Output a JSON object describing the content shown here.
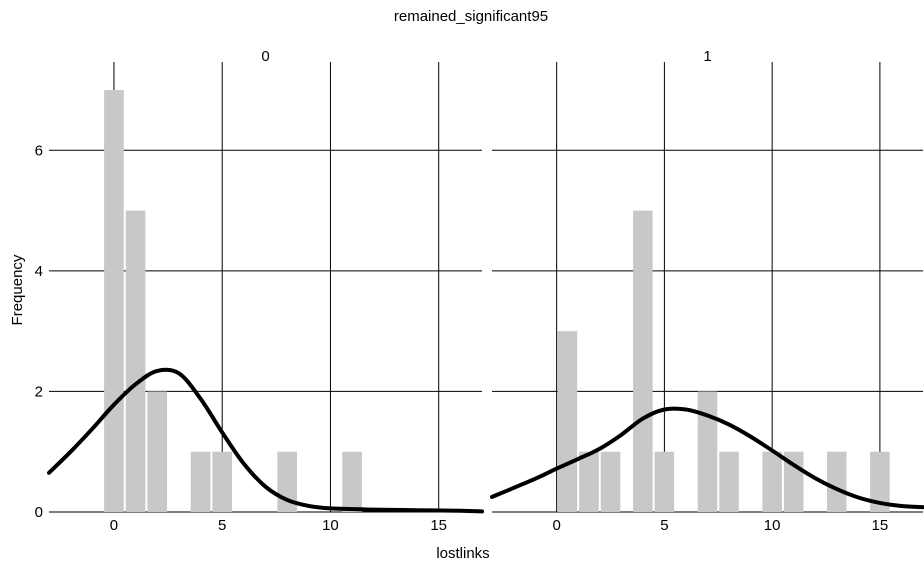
{
  "chart_data": {
    "type": "bar",
    "title": "remained_significant95",
    "xlabel": "lostlinks",
    "ylabel": "Frequency",
    "xlim": [
      -3,
      17
    ],
    "ylim": [
      0,
      7
    ],
    "x_ticks": [
      0,
      5,
      10,
      15
    ],
    "y_ticks": [
      0,
      2,
      4,
      6
    ],
    "grid": true,
    "panels": [
      {
        "label": "0",
        "bars": [
          {
            "x": 0,
            "value": 7
          },
          {
            "x": 1,
            "value": 5
          },
          {
            "x": 2,
            "value": 2
          },
          {
            "x": 4,
            "value": 1
          },
          {
            "x": 5,
            "value": 1
          },
          {
            "x": 8,
            "value": 1
          },
          {
            "x": 11,
            "value": 1
          }
        ],
        "density_curve": [
          {
            "x": -3,
            "y": 0.65
          },
          {
            "x": -2,
            "y": 1.0
          },
          {
            "x": -1,
            "y": 1.38
          },
          {
            "x": 0,
            "y": 1.78
          },
          {
            "x": 1,
            "y": 2.12
          },
          {
            "x": 2,
            "y": 2.34
          },
          {
            "x": 3,
            "y": 2.3
          },
          {
            "x": 4,
            "y": 1.88
          },
          {
            "x": 5,
            "y": 1.32
          },
          {
            "x": 6,
            "y": 0.8
          },
          {
            "x": 7,
            "y": 0.42
          },
          {
            "x": 8,
            "y": 0.2
          },
          {
            "x": 9,
            "y": 0.1
          },
          {
            "x": 10,
            "y": 0.06
          },
          {
            "x": 12,
            "y": 0.04
          },
          {
            "x": 14,
            "y": 0.03
          },
          {
            "x": 16,
            "y": 0.02
          },
          {
            "x": 17,
            "y": 0.01
          }
        ]
      },
      {
        "label": "1",
        "bars": [
          {
            "x": 0.5,
            "value": 3
          },
          {
            "x": 1.5,
            "value": 1
          },
          {
            "x": 2.5,
            "value": 1
          },
          {
            "x": 4,
            "value": 5
          },
          {
            "x": 5,
            "value": 1
          },
          {
            "x": 7,
            "value": 2
          },
          {
            "x": 8,
            "value": 1
          },
          {
            "x": 10,
            "value": 1
          },
          {
            "x": 11,
            "value": 1
          },
          {
            "x": 13,
            "value": 1
          },
          {
            "x": 15,
            "value": 1
          }
        ],
        "density_curve": [
          {
            "x": -3,
            "y": 0.25
          },
          {
            "x": -1,
            "y": 0.55
          },
          {
            "x": 0,
            "y": 0.72
          },
          {
            "x": 1,
            "y": 0.88
          },
          {
            "x": 2,
            "y": 1.05
          },
          {
            "x": 3,
            "y": 1.28
          },
          {
            "x": 4,
            "y": 1.55
          },
          {
            "x": 5,
            "y": 1.7
          },
          {
            "x": 6,
            "y": 1.7
          },
          {
            "x": 7,
            "y": 1.6
          },
          {
            "x": 8,
            "y": 1.45
          },
          {
            "x": 9,
            "y": 1.25
          },
          {
            "x": 10,
            "y": 1.02
          },
          {
            "x": 11,
            "y": 0.78
          },
          {
            "x": 12,
            "y": 0.56
          },
          {
            "x": 13,
            "y": 0.38
          },
          {
            "x": 14,
            "y": 0.24
          },
          {
            "x": 15,
            "y": 0.15
          },
          {
            "x": 16,
            "y": 0.1
          },
          {
            "x": 17,
            "y": 0.08
          }
        ]
      }
    ],
    "colors": {
      "bar": "#c8c8c9",
      "curve": "#000000",
      "grid": "#000000"
    }
  }
}
